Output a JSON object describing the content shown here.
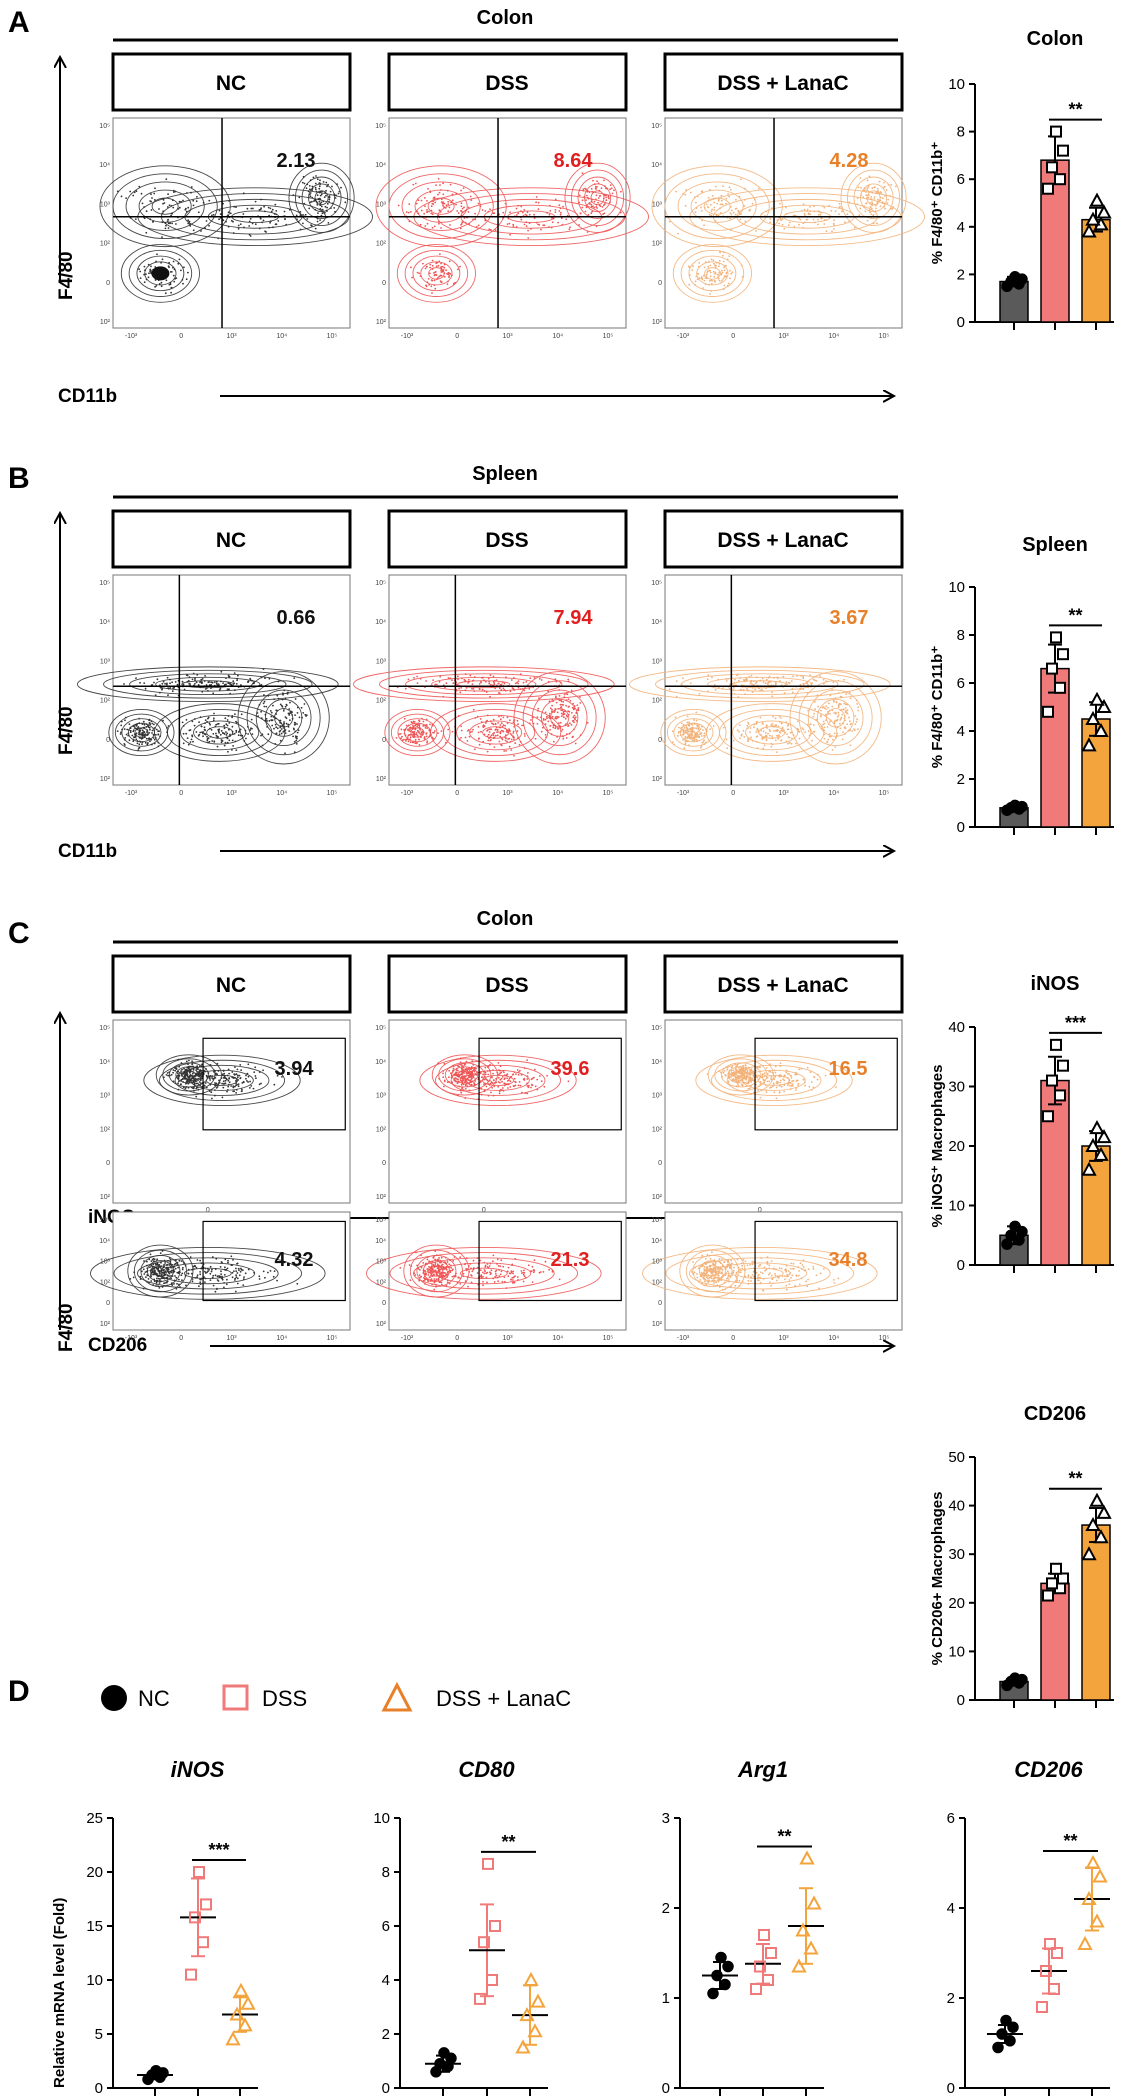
{
  "colors": {
    "nc": "#5a5a5a",
    "dss": "#f07a7a",
    "lanac": "#f4a43c",
    "pct_nc": "#111111",
    "pct_dss": "#e02020",
    "pct_lanac": "#e8802a",
    "contour_nc": "#333333",
    "contour_dss": "#ee5555",
    "contour_lanac": "#f3b27a"
  },
  "panels": {
    "A": {
      "letter": "A",
      "title": "Colon",
      "groups": [
        "NC",
        "DSS",
        "DSS + LanaC"
      ],
      "percents": [
        "2.13",
        "8.64",
        "4.28"
      ],
      "y_axis": "F4/80",
      "x_axis": "CD11b"
    },
    "B": {
      "letter": "B",
      "title": "Spleen",
      "groups": [
        "NC",
        "DSS",
        "DSS + LanaC"
      ],
      "percents": [
        "0.66",
        "7.94",
        "3.67"
      ],
      "y_axis": "F4/80",
      "x_axis": "CD11b"
    },
    "C": {
      "letter": "C",
      "title": "Colon",
      "groups": [
        "NC",
        "DSS",
        "DSS + LanaC"
      ],
      "percents_inos": [
        "3.94",
        "39.6",
        "16.5"
      ],
      "percents_cd206": [
        "4.32",
        "21.3",
        "34.8"
      ],
      "y_axis": "F4/80",
      "x_axis_inos": "iNOS",
      "x_axis_cd206": "CD206"
    },
    "D": {
      "letter": "D",
      "legend": [
        "NC",
        "DSS",
        "DSS + LanaC"
      ],
      "y_axis": "Relative mRNA level (Fold)"
    }
  },
  "flow_tick_labels": {
    "y": [
      "10⁵",
      "10⁴",
      "10³",
      "10²",
      "0",
      "10²"
    ],
    "x": [
      "-10³",
      "0",
      "10³",
      "10⁴",
      "10⁵"
    ]
  },
  "chart_data": [
    {
      "type": "bar",
      "title": "Colon",
      "ylabel": "% F4/80⁺ CD11b⁺",
      "ylim": [
        0,
        10
      ],
      "yticks": [
        0,
        2,
        4,
        6,
        8,
        10
      ],
      "categories": [
        "NC",
        "DSS",
        "DSS + LanaC"
      ],
      "values": [
        1.7,
        6.8,
        4.3
      ],
      "errors": [
        0.2,
        1.0,
        0.5
      ],
      "points": [
        [
          1.5,
          1.6,
          1.7,
          1.8,
          1.9
        ],
        [
          5.6,
          6.0,
          6.5,
          7.2,
          8.0
        ],
        [
          3.8,
          4.1,
          4.3,
          4.6,
          5.1
        ]
      ],
      "sig": "**",
      "sig_pair": [
        1,
        2
      ]
    },
    {
      "type": "bar",
      "title": "Spleen",
      "ylabel": "% F4/80⁺ CD11b⁺",
      "ylim": [
        0,
        10
      ],
      "yticks": [
        0,
        2,
        4,
        6,
        8,
        10
      ],
      "categories": [
        "NC",
        "DSS",
        "DSS + LanaC"
      ],
      "values": [
        0.8,
        6.6,
        4.5
      ],
      "errors": [
        0.1,
        1.0,
        0.7
      ],
      "points": [
        [
          0.7,
          0.75,
          0.8,
          0.85,
          0.9
        ],
        [
          4.8,
          5.8,
          6.6,
          7.2,
          7.9
        ],
        [
          3.4,
          4.0,
          4.5,
          5.0,
          5.3
        ]
      ],
      "sig": "**",
      "sig_pair": [
        1,
        2
      ]
    },
    {
      "type": "bar",
      "title": "iNOS",
      "ylabel": "% iNOS⁺ Macrophages",
      "ylim": [
        0,
        40
      ],
      "yticks": [
        0,
        10,
        20,
        30,
        40
      ],
      "categories": [
        "NC",
        "DSS",
        "DSS + LanaC"
      ],
      "values": [
        5.0,
        31.0,
        20.0
      ],
      "errors": [
        1.5,
        4.0,
        2.5
      ],
      "points": [
        [
          3.5,
          4.2,
          5.0,
          5.6,
          6.5
        ],
        [
          25.0,
          28.5,
          31.0,
          33.5,
          37.0
        ],
        [
          16.0,
          18.5,
          20.0,
          21.5,
          23.0
        ]
      ],
      "sig": "***",
      "sig_pair": [
        1,
        2
      ]
    },
    {
      "type": "bar",
      "title": "CD206",
      "ylabel": "% CD206+ Macrophages",
      "ylim": [
        0,
        50
      ],
      "yticks": [
        0,
        10,
        20,
        30,
        40,
        50
      ],
      "categories": [
        "NC",
        "DSS",
        "DSS + LanaC"
      ],
      "values": [
        3.8,
        24.0,
        36.0
      ],
      "errors": [
        0.5,
        2.0,
        3.5
      ],
      "points": [
        [
          3.0,
          3.5,
          3.8,
          4.2,
          4.5
        ],
        [
          21.5,
          23.0,
          24.0,
          25.0,
          27.0
        ],
        [
          30.0,
          33.5,
          36.0,
          38.5,
          41.0
        ]
      ],
      "sig": "**",
      "sig_pair": [
        1,
        2
      ]
    },
    {
      "type": "scatter",
      "title": "iNOS",
      "ylabel": "Relative mRNA level (Fold)",
      "ylim": [
        0,
        25
      ],
      "yticks": [
        0,
        5,
        10,
        15,
        20,
        25
      ],
      "categories": [
        "NC",
        "DSS",
        "DSS + LanaC"
      ],
      "means": [
        1.2,
        15.8,
        6.8
      ],
      "errors": [
        0.3,
        3.6,
        1.6
      ],
      "points": [
        [
          0.8,
          1.0,
          1.2,
          1.4,
          1.6
        ],
        [
          10.5,
          13.5,
          15.8,
          17.0,
          20.0
        ],
        [
          4.5,
          5.8,
          6.8,
          7.8,
          9.0
        ]
      ],
      "sig": "***",
      "sig_pair": [
        1,
        2
      ]
    },
    {
      "type": "scatter",
      "title": "CD80",
      "ylabel": "",
      "ylim": [
        0,
        10
      ],
      "yticks": [
        0,
        2,
        4,
        6,
        8,
        10
      ],
      "categories": [
        "NC",
        "DSS",
        "DSS + LanaC"
      ],
      "means": [
        0.9,
        5.1,
        2.7
      ],
      "errors": [
        0.3,
        1.7,
        1.1
      ],
      "points": [
        [
          0.6,
          0.8,
          0.9,
          1.1,
          1.3
        ],
        [
          3.3,
          4.0,
          5.4,
          6.0,
          8.3
        ],
        [
          1.5,
          2.1,
          2.7,
          3.2,
          4.0
        ]
      ],
      "sig": "**",
      "sig_pair": [
        1,
        2
      ]
    },
    {
      "type": "scatter",
      "title": "Arg1",
      "ylabel": "",
      "ylim": [
        0,
        3
      ],
      "yticks": [
        0,
        1,
        2,
        3
      ],
      "categories": [
        "NC",
        "DSS",
        "DSS + LanaC"
      ],
      "means": [
        1.25,
        1.38,
        1.8
      ],
      "errors": [
        0.15,
        0.22,
        0.42
      ],
      "points": [
        [
          1.05,
          1.15,
          1.25,
          1.35,
          1.45
        ],
        [
          1.1,
          1.2,
          1.35,
          1.5,
          1.7
        ],
        [
          1.35,
          1.55,
          1.75,
          2.05,
          2.55
        ]
      ],
      "sig": "**",
      "sig_pair": [
        1,
        2
      ]
    },
    {
      "type": "scatter",
      "title": "CD206",
      "ylabel": "",
      "ylim": [
        0,
        6
      ],
      "yticks": [
        0,
        2,
        4,
        6
      ],
      "categories": [
        "NC",
        "DSS",
        "DSS + LanaC"
      ],
      "means": [
        1.2,
        2.6,
        4.2
      ],
      "errors": [
        0.2,
        0.5,
        0.7
      ],
      "points": [
        [
          0.9,
          1.05,
          1.2,
          1.35,
          1.5
        ],
        [
          1.8,
          2.2,
          2.6,
          3.0,
          3.2
        ],
        [
          3.2,
          3.7,
          4.2,
          4.7,
          5.0
        ]
      ],
      "sig": "**",
      "sig_pair": [
        1,
        2
      ]
    }
  ]
}
